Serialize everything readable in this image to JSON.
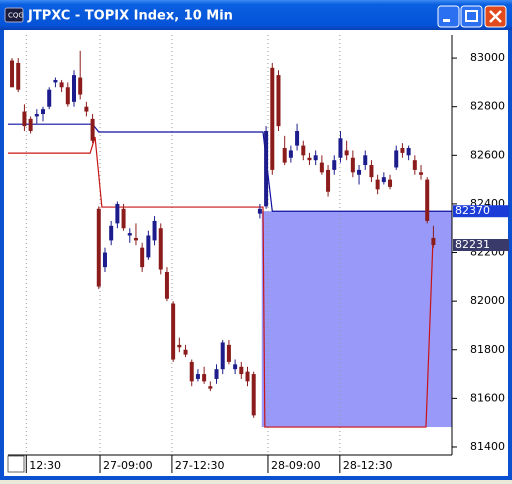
{
  "chart_data": {
    "type": "candlestick",
    "title": "JTPXC - TOPIX Index, 10 Min",
    "x": [
      0,
      1,
      2,
      3,
      4,
      5,
      6,
      7,
      8,
      9,
      10,
      11,
      12,
      13,
      14,
      15,
      16,
      17,
      18,
      19,
      20,
      21,
      22,
      23,
      24,
      25,
      26,
      27,
      28,
      29,
      30,
      31,
      32,
      33,
      34,
      35,
      36,
      37,
      38,
      39,
      40,
      41,
      42,
      43,
      44,
      45,
      46,
      47,
      48,
      49,
      50,
      51,
      52,
      53,
      54,
      55,
      56,
      57,
      58,
      59,
      60,
      61,
      62,
      63,
      64,
      65,
      66,
      67,
      68
    ],
    "open": [
      82990,
      82980,
      82780,
      82750,
      82760,
      82770,
      82800,
      82900,
      82900,
      82880,
      82820,
      82920,
      82800,
      82750,
      82380,
      82140,
      82250,
      82320,
      82380,
      82270,
      82260,
      82220,
      82180,
      82250,
      82300,
      82120,
      81990,
      81820,
      81800,
      81750,
      81680,
      81700,
      81650,
      81680,
      81720,
      81820,
      81720,
      81730,
      81710,
      81700,
      82360,
      82390,
      82960,
      82930,
      82630,
      82590,
      82640,
      82640,
      82590,
      82580,
      82570,
      82540,
      82540,
      82590,
      82620,
      82590,
      82520,
      82560,
      82560,
      82500,
      82490,
      82500,
      82550,
      82630,
      82600,
      82580,
      82530,
      82500,
      82260
    ],
    "high": [
      83000,
      83000,
      82810,
      82760,
      82790,
      82800,
      82880,
      82920,
      82910,
      82900,
      82950,
      83030,
      82820,
      82770,
      82390,
      82220,
      82330,
      82410,
      82400,
      82300,
      82320,
      82240,
      82290,
      82350,
      82320,
      82140,
      82000,
      81850,
      81820,
      81760,
      81720,
      81730,
      81670,
      81740,
      81840,
      81840,
      81760,
      81750,
      81730,
      81710,
      82400,
      82720,
      82980,
      82950,
      82680,
      82640,
      82730,
      82660,
      82610,
      82620,
      82600,
      82560,
      82600,
      82700,
      82660,
      82620,
      82560,
      82620,
      82580,
      82520,
      82530,
      82520,
      82640,
      82650,
      82640,
      82600,
      82560,
      82510,
      82310
    ],
    "low": [
      82880,
      82860,
      82700,
      82690,
      82730,
      82740,
      82790,
      82880,
      82860,
      82800,
      82800,
      82830,
      82760,
      82650,
      82050,
      82120,
      82230,
      82300,
      82290,
      82240,
      82230,
      82120,
      82170,
      82230,
      82110,
      82000,
      81750,
      81790,
      81770,
      81650,
      81670,
      81660,
      81630,
      81660,
      81700,
      81740,
      81700,
      81680,
      81650,
      81520,
      82340,
      82380,
      82520,
      82700,
      82560,
      82570,
      82620,
      82580,
      82560,
      82560,
      82520,
      82430,
      82520,
      82570,
      82580,
      82510,
      82480,
      82540,
      82490,
      82440,
      82480,
      82460,
      82540,
      82590,
      82580,
      82520,
      82500,
      82320,
      82220
    ],
    "close": [
      82880,
      82870,
      82720,
      82700,
      82770,
      82790,
      82870,
      82910,
      82880,
      82810,
      82930,
      82850,
      82780,
      82660,
      82060,
      82200,
      82310,
      82400,
      82300,
      82280,
      82250,
      82140,
      82270,
      82330,
      82130,
      82010,
      81760,
      81810,
      81780,
      81670,
      81700,
      81670,
      81640,
      81720,
      81830,
      81750,
      81740,
      81700,
      81670,
      81530,
      82380,
      82700,
      82540,
      82720,
      82570,
      82620,
      82700,
      82600,
      82580,
      82600,
      82530,
      82450,
      82580,
      82670,
      82600,
      82530,
      82540,
      82600,
      82510,
      82460,
      82510,
      82470,
      82620,
      82610,
      82630,
      82540,
      82520,
      82330,
      82231
    ],
    "up_color": "#1c1c8c",
    "down_color": "#8c1c1c",
    "lines": [
      {
        "color": "#1010a0",
        "x": [
          -0.65,
          13,
          14,
          40.5,
          42,
          71
        ],
        "values": [
          82728,
          82728,
          82696,
          82696,
          82370,
          82370
        ]
      },
      {
        "color": "#c81414",
        "x": [
          -0.65,
          12.6,
          13.4,
          14.5,
          40.5,
          40.8,
          66.8,
          67.9
        ],
        "values": [
          82609,
          82609,
          82675,
          82387,
          82387,
          81482,
          81482,
          82231
        ]
      }
    ],
    "shaded_range": {
      "color": "#8080f8",
      "x": [
        40.3,
        71
      ],
      "values": [
        81482,
        82370
      ]
    },
    "price_tags": [
      {
        "value": 82370,
        "color": "#1c3cd8"
      },
      {
        "value": 82231,
        "color": "#3a3a6a"
      }
    ],
    "xlim": [
      -0.65,
      71
    ],
    "ylim": [
      81367,
      83095
    ],
    "xticks": [
      {
        "value": 2.3,
        "label": "12:30"
      },
      {
        "value": 14.2,
        "label": "27-09:00"
      },
      {
        "value": 25.8,
        "label": "27-12:30"
      },
      {
        "value": 41.3,
        "label": "28-09:00"
      },
      {
        "value": 52.9,
        "label": "28-12:30"
      }
    ],
    "yticks": [
      81400,
      81600,
      81800,
      82000,
      82200,
      82400,
      82600,
      82800,
      83000
    ]
  }
}
